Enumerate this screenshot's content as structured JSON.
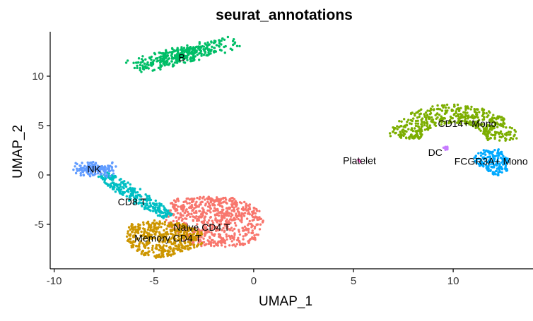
{
  "chart_data": {
    "type": "scatter",
    "title": "seurat_annotations",
    "xlabel": "UMAP_1",
    "ylabel": "UMAP_2",
    "xlim": [
      -10.2,
      14
    ],
    "ylim": [
      -9.5,
      14.5
    ],
    "xticks": [
      -10,
      -5,
      0,
      5,
      10
    ],
    "yticks": [
      -5,
      0,
      5,
      10
    ],
    "xtick_labels": [
      "-10",
      "-5",
      "0",
      "5",
      "10"
    ],
    "ytick_labels": [
      "-5",
      "0",
      "5",
      "10"
    ],
    "grid": false,
    "legend": "none",
    "series": [
      {
        "name": "Naive CD4 T",
        "color": "#F8766D",
        "n_points": 700,
        "shape": "blob",
        "polygon": [
          [
            -4,
            -2.4
          ],
          [
            -2.5,
            -2.2
          ],
          [
            -1,
            -2.3
          ],
          [
            0.2,
            -3.2
          ],
          [
            0.5,
            -4.6
          ],
          [
            0.3,
            -6.4
          ],
          [
            -0.6,
            -7.2
          ],
          [
            -2,
            -7.4
          ],
          [
            -3.2,
            -7
          ],
          [
            -4,
            -6
          ],
          [
            -4.4,
            -4.6
          ],
          [
            -4.3,
            -3.2
          ]
        ],
        "label_pos": [
          -2.6,
          -5.3
        ]
      },
      {
        "name": "Memory CD4 T",
        "color": "#CD9600",
        "n_points": 480,
        "shape": "blob",
        "polygon": [
          [
            -6.2,
            -5
          ],
          [
            -5,
            -4.6
          ],
          [
            -3.6,
            -4.9
          ],
          [
            -2.6,
            -5.8
          ],
          [
            -2.6,
            -7.1
          ],
          [
            -3.6,
            -7.8
          ],
          [
            -4.6,
            -8.5
          ],
          [
            -5.6,
            -8.1
          ],
          [
            -6.3,
            -7.1
          ],
          [
            -6.4,
            -6
          ]
        ],
        "label_pos": [
          -4.3,
          -6.4
        ]
      },
      {
        "name": "CD14+ Mono",
        "color": "#7CAE00",
        "n_points": 500,
        "shape": "arc",
        "arc": {
          "center": [
            10,
            3.2
          ],
          "rx": 2.5,
          "ry": 3.0,
          "theta_start": 190,
          "theta_end": 355,
          "thickness": 1.2
        },
        "label_pos": [
          10.7,
          5.2
        ]
      },
      {
        "name": "B",
        "color": "#00BE67",
        "n_points": 380,
        "shape": "ellipse",
        "ellipse": {
          "center": [
            -3.5,
            12.2
          ],
          "sx": 2.5,
          "sy": 0.38,
          "angle_deg": 27
        },
        "label_pos": [
          -3.6,
          11.9
        ]
      },
      {
        "name": "CD8 T",
        "color": "#00BFC4",
        "n_points": 260,
        "shape": "band",
        "band": {
          "from": [
            -7.6,
            0.1
          ],
          "to": [
            -4.3,
            -4.2
          ],
          "width": 1.0
        },
        "label_pos": [
          -6.1,
          -2.7
        ]
      },
      {
        "name": "FCGR3A+ Mono",
        "color": "#00A9FF",
        "n_points": 160,
        "shape": "blob",
        "polygon": [
          [
            11.3,
            2.5
          ],
          [
            12.3,
            2.6
          ],
          [
            12.8,
            1.6
          ],
          [
            12.7,
            0.4
          ],
          [
            12.2,
            -0.1
          ],
          [
            11.7,
            0.3
          ],
          [
            11.1,
            1.3
          ],
          [
            11.0,
            2.1
          ]
        ],
        "label_pos": [
          11.9,
          1.4
        ]
      },
      {
        "name": "NK",
        "color": "#619CFF",
        "n_points": 170,
        "shape": "ellipse",
        "ellipse": {
          "center": [
            -8.0,
            0.6
          ],
          "sx": 0.9,
          "sy": 0.35,
          "angle_deg": -4
        },
        "label_pos": [
          -8.0,
          0.6
        ]
      },
      {
        "name": "DC",
        "color": "#C77CFF",
        "n_points": 10,
        "shape": "ellipse",
        "ellipse": {
          "center": [
            9.6,
            2.7
          ],
          "sx": 0.2,
          "sy": 0.08,
          "angle_deg": 20
        },
        "label_pos": [
          9.1,
          2.3
        ]
      },
      {
        "name": "Platelet",
        "color": "#FF61CC",
        "n_points": 6,
        "shape": "ellipse",
        "ellipse": {
          "center": [
            5.3,
            1.45
          ],
          "sx": 0.1,
          "sy": 0.06,
          "angle_deg": 0
        },
        "label_pos": [
          5.3,
          1.45
        ]
      }
    ]
  }
}
